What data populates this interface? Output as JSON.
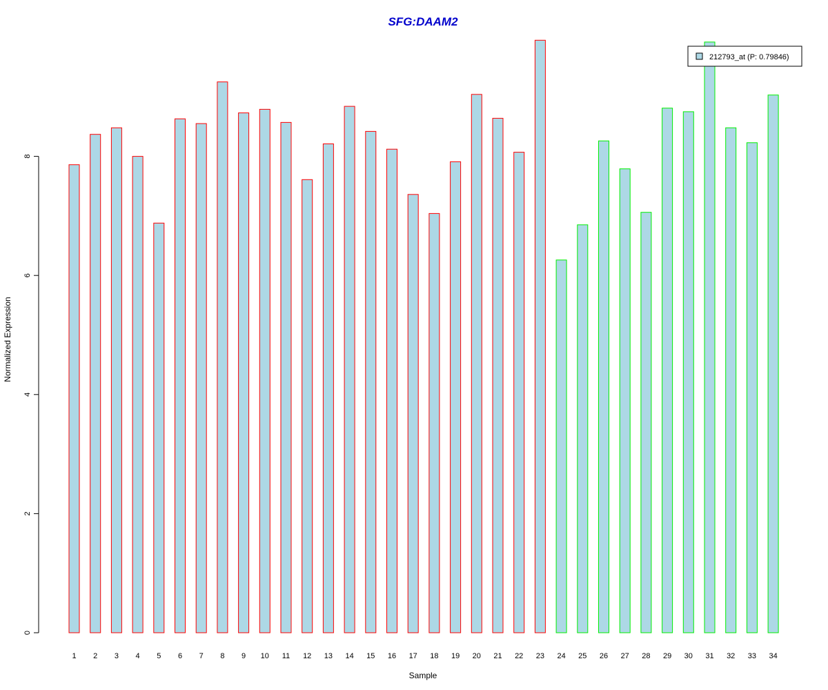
{
  "chart_data": {
    "type": "bar",
    "title": "SFG:DAAM2",
    "xlabel": "Sample",
    "ylabel": "Normalized Expression",
    "ylim": [
      0,
      10
    ],
    "y_ticks": [
      "0",
      "2",
      "4",
      "6",
      "8"
    ],
    "categories": [
      "1",
      "2",
      "3",
      "4",
      "5",
      "6",
      "7",
      "8",
      "9",
      "10",
      "11",
      "12",
      "13",
      "14",
      "15",
      "16",
      "17",
      "18",
      "19",
      "20",
      "21",
      "22",
      "23",
      "24",
      "25",
      "26",
      "27",
      "28",
      "29",
      "30",
      "31",
      "32",
      "33",
      "34"
    ],
    "series": [
      {
        "name": "212793_at (P: 0.79846)",
        "values": [
          7.86,
          8.37,
          8.48,
          8.0,
          6.88,
          8.63,
          8.55,
          9.25,
          8.73,
          8.79,
          8.57,
          7.61,
          8.21,
          8.84,
          8.42,
          8.12,
          7.36,
          7.04,
          7.91,
          9.04,
          8.64,
          8.07,
          9.95,
          6.26,
          6.85,
          8.26,
          7.79,
          7.06,
          8.81,
          8.75,
          9.92,
          8.48,
          8.23,
          9.03
        ]
      }
    ],
    "group_sizes": [
      23,
      11
    ],
    "colors": {
      "bar_fill": "#add8e6",
      "group1_border": "#ff0000",
      "group2_border": "#00ee00",
      "title": "#0000cc"
    },
    "legend": {
      "label": "212793_at (P: 0.79846)",
      "position": "top-right"
    },
    "grid": false
  }
}
